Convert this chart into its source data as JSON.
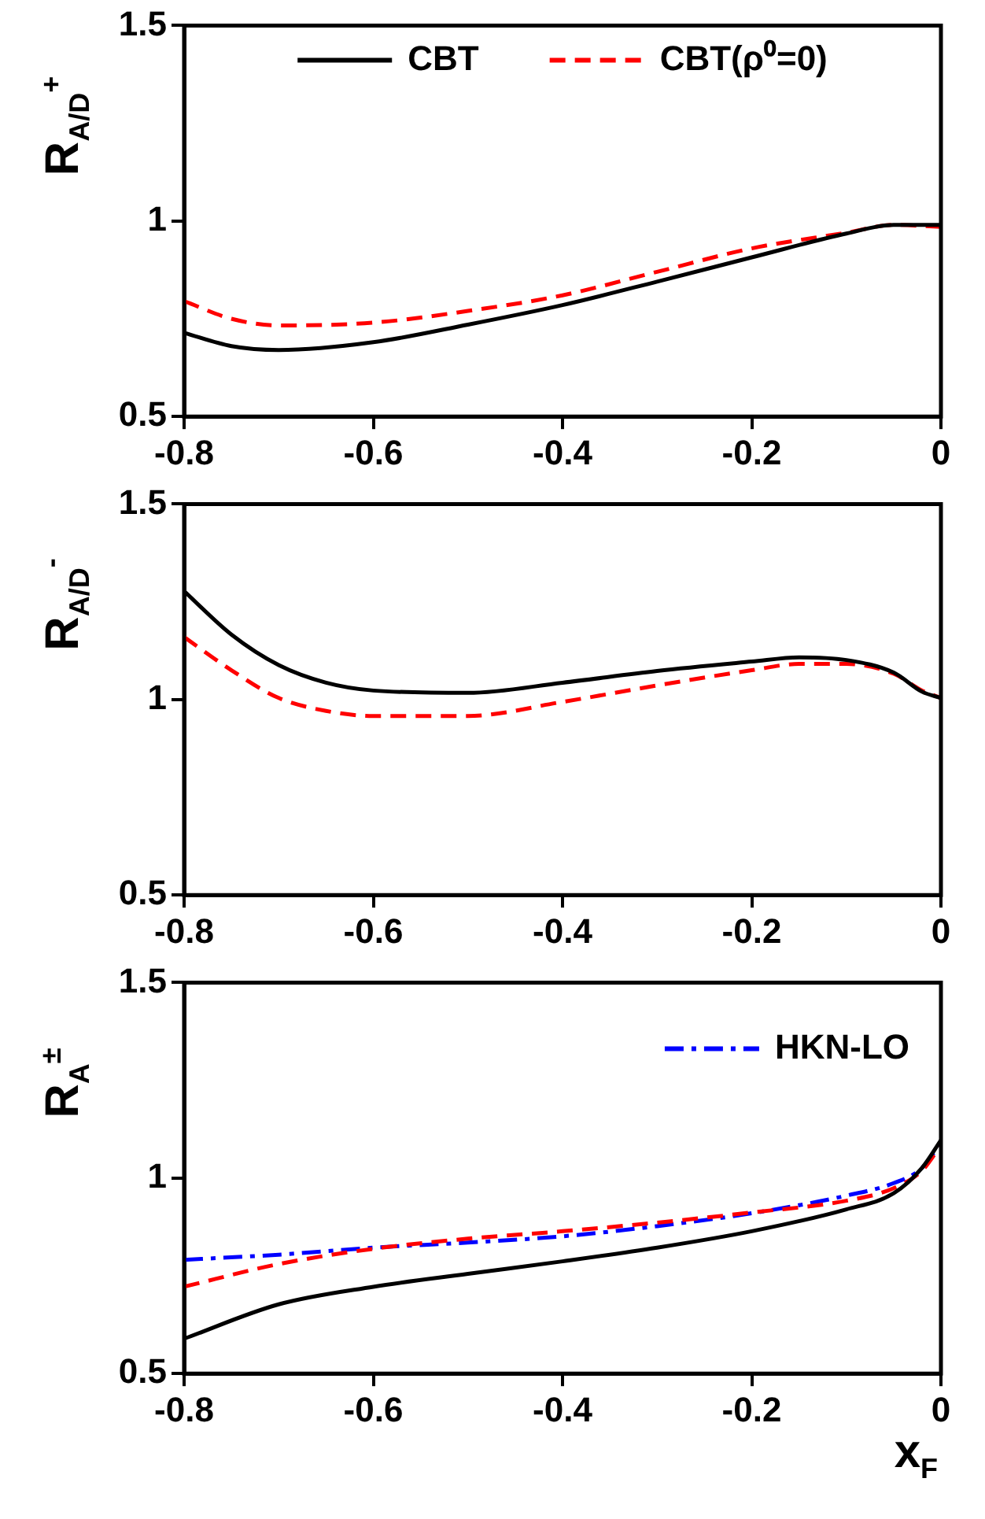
{
  "chart_data": [
    {
      "type": "line",
      "ylabel": "R$_{A/D}$$^{+}$",
      "x": [
        -0.8,
        -0.75,
        -0.7,
        -0.6,
        -0.5,
        -0.4,
        -0.3,
        -0.2,
        -0.1,
        -0.05,
        0
      ],
      "xlim": [
        -0.8,
        0
      ],
      "xticks": [
        -0.8,
        -0.6,
        -0.4,
        -0.2,
        0
      ],
      "ylim": [
        0.5,
        1.5
      ],
      "yticks": [
        0.5,
        1,
        1.5
      ],
      "legend": "top",
      "series": [
        {
          "name": "CBT",
          "color": "#000000",
          "line_style": "solid",
          "values": [
            0.714,
            0.68,
            0.67,
            0.69,
            0.735,
            0.785,
            0.845,
            0.907,
            0.968,
            0.99,
            0.99
          ]
        },
        {
          "name": "CBT(ρ⁰=0)",
          "color": "#ff0000",
          "line_style": "dashed",
          "values": [
            0.795,
            0.75,
            0.733,
            0.74,
            0.77,
            0.81,
            0.87,
            0.93,
            0.97,
            0.99,
            0.985
          ]
        }
      ]
    },
    {
      "type": "line",
      "ylabel": "R$_{A/D}$$^{-}$",
      "x": [
        -0.8,
        -0.75,
        -0.7,
        -0.65,
        -0.6,
        -0.5,
        -0.4,
        -0.3,
        -0.2,
        -0.15,
        -0.1,
        -0.05,
        -0.02,
        0
      ],
      "xlim": [
        -0.8,
        0
      ],
      "xticks": [
        -0.8,
        -0.6,
        -0.4,
        -0.2,
        0
      ],
      "ylim": [
        0.5,
        1.5
      ],
      "yticks": [
        0.5,
        1,
        1.5
      ],
      "series": [
        {
          "color": "#000000",
          "line_style": "solid",
          "values": [
            1.277,
            1.166,
            1.088,
            1.043,
            1.023,
            1.017,
            1.043,
            1.073,
            1.097,
            1.108,
            1.101,
            1.069,
            1.02,
            1.004
          ]
        },
        {
          "color": "#ff0000",
          "line_style": "dashed",
          "values": [
            1.16,
            1.075,
            1.004,
            0.971,
            0.958,
            0.958,
            0.994,
            1.036,
            1.075,
            1.091,
            1.091,
            1.066,
            1.023,
            1.004
          ]
        }
      ]
    },
    {
      "type": "line",
      "ylabel": "R$_{A}$$^{±}$",
      "xlabel": "x$_{F}$",
      "x": [
        -0.8,
        -0.7,
        -0.6,
        -0.5,
        -0.4,
        -0.3,
        -0.2,
        -0.1,
        -0.05,
        -0.02,
        0
      ],
      "xlim": [
        -0.8,
        0
      ],
      "xticks": [
        -0.8,
        -0.6,
        -0.4,
        -0.2,
        0
      ],
      "ylim": [
        0.5,
        1.5
      ],
      "yticks": [
        0.5,
        1,
        1.5
      ],
      "legend": "top right",
      "series": [
        {
          "color": "#000000",
          "line_style": "solid",
          "values": [
            0.589,
            0.677,
            0.722,
            0.755,
            0.787,
            0.822,
            0.864,
            0.92,
            0.961,
            1.026,
            1.097
          ]
        },
        {
          "color": "#ff0000",
          "line_style": "dashed",
          "values": [
            0.722,
            0.78,
            0.819,
            0.845,
            0.864,
            0.886,
            0.912,
            0.942,
            0.974,
            1.019,
            1.084
          ]
        },
        {
          "name": "HKN-LO",
          "color": "#0000ff",
          "line_style": "dashdot",
          "values": [
            0.791,
            0.804,
            0.822,
            0.835,
            0.851,
            0.877,
            0.91,
            0.955,
            0.987,
            1.026,
            1.09
          ]
        }
      ]
    }
  ]
}
